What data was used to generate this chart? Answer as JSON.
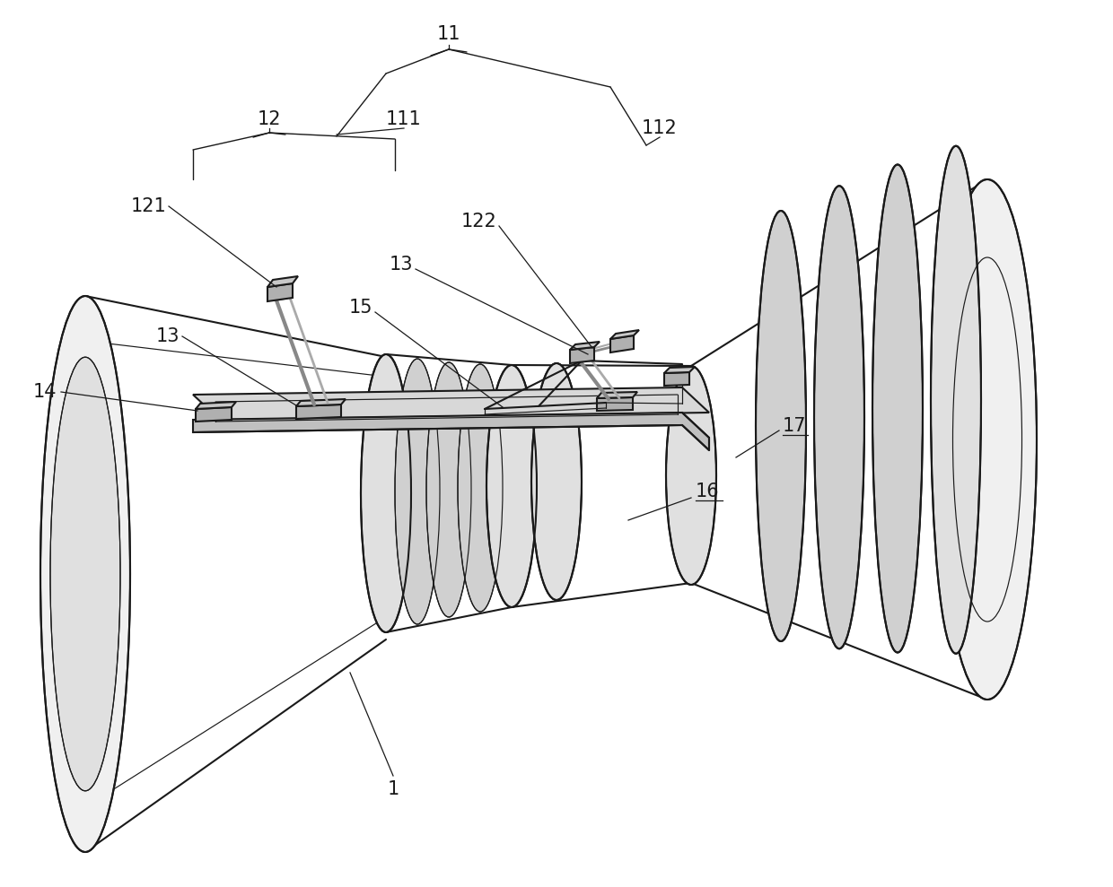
{
  "bg": "#ffffff",
  "lc": "#1a1a1a",
  "lw": 1.5,
  "tlw": 0.85,
  "fs": 15,
  "fig_w": 12.4,
  "fig_h": 9.89,
  "dpi": 100,
  "pipe_gray": "#f0f0f0",
  "pipe_gray2": "#e0e0e0",
  "pipe_gray3": "#d0d0d0",
  "platform_gray": "#d8d8d8",
  "sensor_gray": "#b0b0b0",
  "sensor_top": "#c8c8c8"
}
